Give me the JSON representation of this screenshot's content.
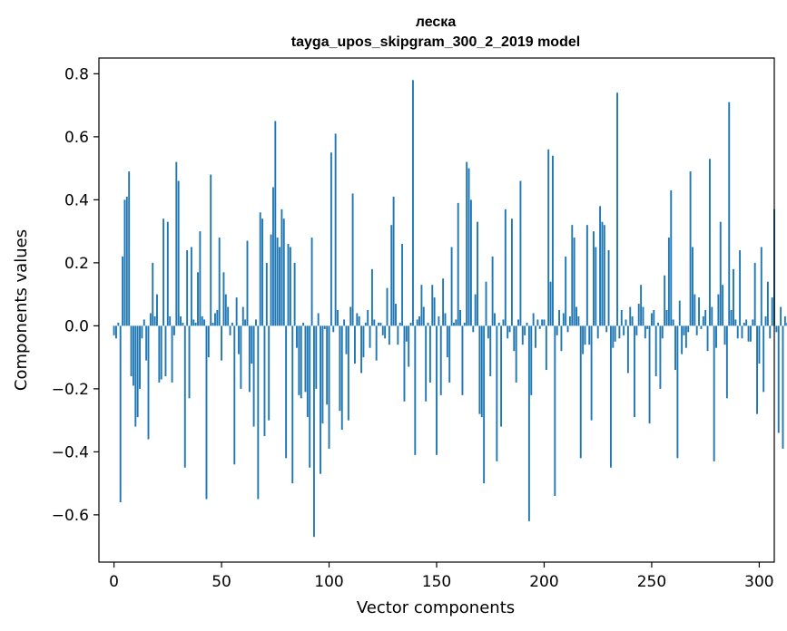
{
  "chart_data": {
    "type": "bar",
    "title": "леска",
    "subtitle": "tayga_upos_skipgram_300_2_2019 model",
    "xlabel": "Vector components",
    "ylabel": "Components values",
    "xlim": [
      -7,
      307
    ],
    "ylim": [
      -0.75,
      0.85
    ],
    "xticks": [
      0,
      50,
      100,
      150,
      200,
      250,
      300
    ],
    "yticks": [
      -0.6,
      -0.4,
      -0.2,
      0.0,
      0.2,
      0.4,
      0.6,
      0.8
    ],
    "grid": false,
    "bar_color": "#1f77b4",
    "values": [
      -0.03,
      -0.04,
      0.01,
      -0.56,
      0.22,
      0.4,
      0.41,
      0.49,
      -0.16,
      -0.19,
      -0.32,
      -0.29,
      -0.2,
      -0.04,
      0.02,
      -0.11,
      -0.36,
      0.04,
      0.2,
      0.03,
      0.1,
      -0.18,
      -0.17,
      0.34,
      -0.16,
      0.33,
      0.03,
      -0.18,
      -0.03,
      0.52,
      0.46,
      0.03,
      0.01,
      -0.45,
      0.24,
      -0.23,
      0.25,
      0.02,
      0.01,
      0.17,
      0.3,
      0.03,
      0.02,
      -0.55,
      -0.1,
      0.48,
      0.01,
      0.04,
      0.05,
      0.28,
      -0.11,
      0.17,
      0.1,
      0.06,
      -0.03,
      0.01,
      -0.44,
      0.09,
      -0.09,
      -0.2,
      0.06,
      0.02,
      0.27,
      -0.21,
      -0.12,
      -0.32,
      0.02,
      -0.55,
      0.36,
      0.34,
      -0.35,
      0.2,
      -0.3,
      0.29,
      0.44,
      0.65,
      0.28,
      0.25,
      0.37,
      0.34,
      -0.42,
      0.26,
      0.25,
      -0.5,
      0.2,
      -0.07,
      -0.22,
      -0.23,
      0.01,
      -0.21,
      -0.29,
      -0.45,
      0.28,
      -0.67,
      -0.2,
      0.04,
      -0.47,
      -0.31,
      -0.01,
      -0.25,
      -0.39,
      0.55,
      -0.02,
      0.61,
      0.05,
      -0.27,
      -0.33,
      0.02,
      -0.09,
      -0.3,
      0.06,
      0.42,
      -0.12,
      0.04,
      0.03,
      -0.15,
      -0.1,
      0.01,
      0.05,
      -0.07,
      0.18,
      0.02,
      -0.11,
      0.01,
      0.01,
      -0.03,
      -0.04,
      0.12,
      -0.06,
      0.32,
      0.41,
      0.07,
      -0.06,
      0.01,
      0.26,
      -0.24,
      -0.05,
      -0.13,
      0.01,
      0.78,
      -0.41,
      0.02,
      0.03,
      0.13,
      0.06,
      -0.24,
      0.01,
      -0.18,
      0.13,
      0.09,
      -0.41,
      0.03,
      -0.22,
      0.15,
      0.04,
      -0.1,
      -0.18,
      0.25,
      0.01,
      0.02,
      0.39,
      0.05,
      -0.22,
      0.01,
      0.52,
      0.5,
      0.4,
      -0.02,
      0.1,
      0.33,
      -0.28,
      -0.29,
      -0.5,
      0.14,
      -0.04,
      -0.16,
      0.22,
      0.04,
      -0.43,
      0.01,
      -0.32,
      0.02,
      0.37,
      -0.04,
      -0.02,
      0.34,
      -0.08,
      -0.18,
      0.02,
      0.46,
      -0.06,
      -0.03,
      0.01,
      -0.62,
      -0.22,
      0.04,
      -0.07,
      0.02,
      -0.01,
      0.02,
      0.02,
      -0.14,
      0.56,
      0.14,
      0.54,
      -0.54,
      -0.03,
      0.05,
      -0.08,
      0.04,
      0.22,
      -0.02,
      0.03,
      0.32,
      0.28,
      0.06,
      0.03,
      -0.42,
      -0.09,
      -0.06,
      0.32,
      -0.06,
      -0.3,
      0.3,
      0.25,
      -0.04,
      0.38,
      0.33,
      0.32,
      -0.02,
      0.24,
      -0.45,
      -0.07,
      -0.05,
      0.74,
      -0.04,
      0.05,
      -0.03,
      0.02,
      -0.15,
      0.06,
      0.03,
      -0.29,
      -0.03,
      0.07,
      0.13,
      0.06,
      -0.04,
      -0.01,
      -0.31,
      0.04,
      0.05,
      -0.16,
      0.01,
      -0.2,
      -0.04,
      0.16,
      0.05,
      0.28,
      0.43,
      0.02,
      -0.14,
      -0.42,
      0.08,
      -0.09,
      -0.03,
      -0.07,
      -0.02,
      0.49,
      0.25,
      0.1,
      -0.03,
      0.09,
      -0.01,
      0.03,
      0.05,
      -0.08,
      0.53,
      0.06,
      -0.43,
      -0.07,
      0.1,
      0.33,
      0.13,
      -0.06,
      -0.23,
      0.71,
      0.05,
      0.18,
      0.02,
      -0.04,
      0.24,
      -0.04,
      0.01,
      0.02,
      -0.05,
      -0.05,
      0.02,
      0.2,
      -0.28,
      -0.12,
      0.25,
      -0.21,
      0.03,
      0.14,
      -0.04,
      0.09,
      0.37,
      -0.02,
      -0.34,
      0.06,
      -0.39,
      0.03,
      0.01
    ]
  }
}
